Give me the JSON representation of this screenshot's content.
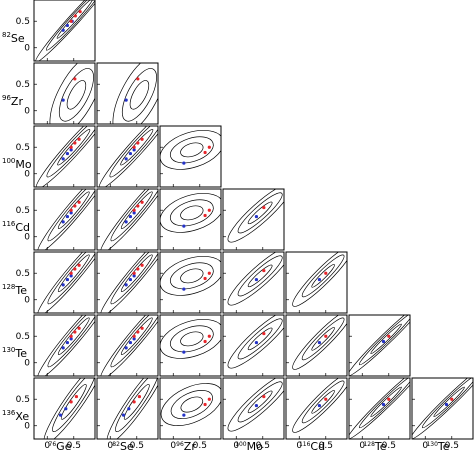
{
  "chart_data": {
    "type": "scatter",
    "layout": "triangular-matrix",
    "row_nuclei": [
      {
        "mass": "82",
        "symbol": "Se"
      },
      {
        "mass": "96",
        "symbol": "Zr"
      },
      {
        "mass": "100",
        "symbol": "Mo"
      },
      {
        "mass": "116",
        "symbol": "Cd"
      },
      {
        "mass": "128",
        "symbol": "Te"
      },
      {
        "mass": "130",
        "symbol": "Te"
      },
      {
        "mass": "136",
        "symbol": "Xe"
      }
    ],
    "col_nuclei": [
      {
        "mass": "76",
        "symbol": "Ge"
      },
      {
        "mass": "82",
        "symbol": "Se"
      },
      {
        "mass": "96",
        "symbol": "Zr"
      },
      {
        "mass": "100",
        "symbol": "Mo"
      },
      {
        "mass": "116",
        "symbol": "Cd"
      },
      {
        "mass": "128",
        "symbol": "Te"
      },
      {
        "mass": "130",
        "symbol": "Te"
      }
    ],
    "x_ticks": [
      "0",
      "0.5"
    ],
    "y_ticks": [
      "0",
      "0.5"
    ],
    "xlim": [
      -0.25,
      0.9
    ],
    "ylim": [
      -0.25,
      0.9
    ],
    "colors": {
      "red": "#e8262b",
      "blue": "#2432c8",
      "contour": "#000000"
    },
    "panels": [
      {
        "row": 0,
        "col": 0,
        "ellipse": {
          "cx": 0.52,
          "cy": 0.55,
          "rx": [
            0.5,
            0.8,
            1.1
          ],
          "ry": [
            0.045,
            0.075,
            0.1
          ],
          "angle": 48
        },
        "red": [
          [
            0.45,
            0.5
          ],
          [
            0.53,
            0.6
          ],
          [
            0.62,
            0.68
          ]
        ],
        "blue": [
          [
            0.3,
            0.33
          ],
          [
            0.38,
            0.42
          ],
          [
            0.47,
            0.5
          ]
        ]
      },
      {
        "row": 1,
        "col": 0,
        "ellipse": {
          "cx": 0.55,
          "cy": 0.3,
          "rx": [
            0.3,
            0.55,
            0.85
          ],
          "ry": [
            0.12,
            0.22,
            0.34
          ],
          "angle": 62
        },
        "red": [
          [
            0.52,
            0.6
          ]
        ],
        "blue": [
          [
            0.3,
            0.2
          ]
        ]
      },
      {
        "row": 1,
        "col": 1,
        "ellipse": {
          "cx": 0.55,
          "cy": 0.3,
          "rx": [
            0.3,
            0.55,
            0.85
          ],
          "ry": [
            0.12,
            0.22,
            0.34
          ],
          "angle": 62
        },
        "red": [
          [
            0.52,
            0.6
          ]
        ],
        "blue": [
          [
            0.3,
            0.2
          ]
        ]
      },
      {
        "row": 2,
        "col": 0,
        "ellipse": {
          "cx": 0.5,
          "cy": 0.5,
          "rx": [
            0.45,
            0.75,
            1.05
          ],
          "ry": [
            0.06,
            0.1,
            0.14
          ],
          "angle": 48
        },
        "red": [
          [
            0.45,
            0.5
          ],
          [
            0.52,
            0.58
          ],
          [
            0.6,
            0.65
          ]
        ],
        "blue": [
          [
            0.3,
            0.28
          ],
          [
            0.38,
            0.38
          ],
          [
            0.45,
            0.45
          ]
        ]
      },
      {
        "row": 2,
        "col": 1,
        "ellipse": {
          "cx": 0.5,
          "cy": 0.5,
          "rx": [
            0.45,
            0.75,
            1.05
          ],
          "ry": [
            0.06,
            0.1,
            0.14
          ],
          "angle": 48
        },
        "red": [
          [
            0.45,
            0.5
          ],
          [
            0.52,
            0.58
          ],
          [
            0.6,
            0.65
          ]
        ],
        "blue": [
          [
            0.3,
            0.28
          ],
          [
            0.38,
            0.38
          ],
          [
            0.45,
            0.45
          ]
        ]
      },
      {
        "row": 2,
        "col": 2,
        "ellipse": {
          "cx": 0.35,
          "cy": 0.45,
          "rx": [
            0.22,
            0.42,
            0.62
          ],
          "ry": [
            0.12,
            0.22,
            0.33
          ],
          "angle": 18
        },
        "red": [
          [
            0.6,
            0.4
          ],
          [
            0.68,
            0.5
          ]
        ],
        "blue": [
          [
            0.2,
            0.2
          ]
        ]
      },
      {
        "row": 3,
        "col": 0,
        "ellipse": {
          "cx": 0.5,
          "cy": 0.5,
          "rx": [
            0.45,
            0.75,
            1.05
          ],
          "ry": [
            0.06,
            0.1,
            0.14
          ],
          "angle": 50
        },
        "red": [
          [
            0.45,
            0.5
          ],
          [
            0.52,
            0.58
          ],
          [
            0.6,
            0.65
          ]
        ],
        "blue": [
          [
            0.3,
            0.28
          ],
          [
            0.38,
            0.38
          ],
          [
            0.45,
            0.45
          ]
        ]
      },
      {
        "row": 3,
        "col": 1,
        "ellipse": {
          "cx": 0.5,
          "cy": 0.5,
          "rx": [
            0.45,
            0.75,
            1.05
          ],
          "ry": [
            0.06,
            0.1,
            0.14
          ],
          "angle": 50
        },
        "red": [
          [
            0.45,
            0.5
          ],
          [
            0.52,
            0.58
          ],
          [
            0.6,
            0.65
          ]
        ],
        "blue": [
          [
            0.3,
            0.28
          ],
          [
            0.38,
            0.38
          ],
          [
            0.45,
            0.45
          ]
        ]
      },
      {
        "row": 3,
        "col": 2,
        "ellipse": {
          "cx": 0.35,
          "cy": 0.45,
          "rx": [
            0.22,
            0.42,
            0.62
          ],
          "ry": [
            0.12,
            0.22,
            0.33
          ],
          "angle": 18
        },
        "red": [
          [
            0.6,
            0.4
          ],
          [
            0.68,
            0.5
          ]
        ],
        "blue": [
          [
            0.2,
            0.2
          ]
        ]
      },
      {
        "row": 3,
        "col": 3,
        "ellipse": {
          "cx": 0.45,
          "cy": 0.45,
          "rx": [
            0.3,
            0.55,
            0.8
          ],
          "ry": [
            0.06,
            0.12,
            0.18
          ],
          "angle": 42
        },
        "red": [
          [
            0.52,
            0.55
          ]
        ],
        "blue": [
          [
            0.38,
            0.38
          ]
        ]
      },
      {
        "row": 4,
        "col": 0,
        "ellipse": {
          "cx": 0.5,
          "cy": 0.5,
          "rx": [
            0.45,
            0.75,
            1.05
          ],
          "ry": [
            0.06,
            0.1,
            0.14
          ],
          "angle": 50
        },
        "red": [
          [
            0.45,
            0.5
          ],
          [
            0.52,
            0.58
          ],
          [
            0.6,
            0.65
          ]
        ],
        "blue": [
          [
            0.3,
            0.28
          ],
          [
            0.38,
            0.38
          ],
          [
            0.45,
            0.45
          ]
        ]
      },
      {
        "row": 4,
        "col": 1,
        "ellipse": {
          "cx": 0.5,
          "cy": 0.5,
          "rx": [
            0.45,
            0.75,
            1.05
          ],
          "ry": [
            0.06,
            0.1,
            0.14
          ],
          "angle": 50
        },
        "red": [
          [
            0.45,
            0.5
          ],
          [
            0.52,
            0.58
          ],
          [
            0.6,
            0.65
          ]
        ],
        "blue": [
          [
            0.3,
            0.28
          ],
          [
            0.38,
            0.38
          ],
          [
            0.45,
            0.45
          ]
        ]
      },
      {
        "row": 4,
        "col": 2,
        "ellipse": {
          "cx": 0.35,
          "cy": 0.45,
          "rx": [
            0.22,
            0.42,
            0.62
          ],
          "ry": [
            0.12,
            0.22,
            0.33
          ],
          "angle": 18
        },
        "red": [
          [
            0.6,
            0.4
          ],
          [
            0.68,
            0.5
          ]
        ],
        "blue": [
          [
            0.2,
            0.2
          ]
        ]
      },
      {
        "row": 4,
        "col": 3,
        "ellipse": {
          "cx": 0.45,
          "cy": 0.45,
          "rx": [
            0.3,
            0.55,
            0.8
          ],
          "ry": [
            0.06,
            0.12,
            0.18
          ],
          "angle": 42
        },
        "red": [
          [
            0.52,
            0.55
          ]
        ],
        "blue": [
          [
            0.38,
            0.38
          ]
        ]
      },
      {
        "row": 4,
        "col": 4,
        "ellipse": {
          "cx": 0.45,
          "cy": 0.45,
          "rx": [
            0.3,
            0.55,
            0.8
          ],
          "ry": [
            0.05,
            0.1,
            0.15
          ],
          "angle": 45
        },
        "red": [
          [
            0.5,
            0.5
          ]
        ],
        "blue": [
          [
            0.38,
            0.38
          ]
        ]
      },
      {
        "row": 5,
        "col": 0,
        "ellipse": {
          "cx": 0.5,
          "cy": 0.5,
          "rx": [
            0.45,
            0.75,
            1.05
          ],
          "ry": [
            0.06,
            0.1,
            0.14
          ],
          "angle": 50
        },
        "red": [
          [
            0.45,
            0.5
          ],
          [
            0.52,
            0.58
          ],
          [
            0.6,
            0.65
          ]
        ],
        "blue": [
          [
            0.3,
            0.28
          ],
          [
            0.38,
            0.38
          ],
          [
            0.45,
            0.45
          ]
        ]
      },
      {
        "row": 5,
        "col": 1,
        "ellipse": {
          "cx": 0.5,
          "cy": 0.5,
          "rx": [
            0.45,
            0.75,
            1.05
          ],
          "ry": [
            0.06,
            0.1,
            0.14
          ],
          "angle": 50
        },
        "red": [
          [
            0.45,
            0.5
          ],
          [
            0.52,
            0.58
          ],
          [
            0.6,
            0.65
          ]
        ],
        "blue": [
          [
            0.3,
            0.28
          ],
          [
            0.38,
            0.38
          ],
          [
            0.45,
            0.45
          ]
        ]
      },
      {
        "row": 5,
        "col": 2,
        "ellipse": {
          "cx": 0.35,
          "cy": 0.45,
          "rx": [
            0.22,
            0.42,
            0.62
          ],
          "ry": [
            0.12,
            0.22,
            0.33
          ],
          "angle": 18
        },
        "red": [
          [
            0.6,
            0.4
          ],
          [
            0.68,
            0.5
          ]
        ],
        "blue": [
          [
            0.2,
            0.2
          ]
        ]
      },
      {
        "row": 5,
        "col": 3,
        "ellipse": {
          "cx": 0.45,
          "cy": 0.45,
          "rx": [
            0.3,
            0.55,
            0.8
          ],
          "ry": [
            0.06,
            0.12,
            0.18
          ],
          "angle": 42
        },
        "red": [
          [
            0.52,
            0.55
          ]
        ],
        "blue": [
          [
            0.38,
            0.38
          ]
        ]
      },
      {
        "row": 5,
        "col": 4,
        "ellipse": {
          "cx": 0.45,
          "cy": 0.45,
          "rx": [
            0.3,
            0.55,
            0.8
          ],
          "ry": [
            0.05,
            0.1,
            0.15
          ],
          "angle": 45
        },
        "red": [
          [
            0.5,
            0.5
          ]
        ],
        "blue": [
          [
            0.38,
            0.38
          ]
        ]
      },
      {
        "row": 5,
        "col": 5,
        "ellipse": {
          "cx": 0.45,
          "cy": 0.45,
          "rx": [
            0.4,
            0.7,
            1.0
          ],
          "ry": [
            0.04,
            0.07,
            0.1
          ],
          "angle": 44
        },
        "red": [
          [
            0.5,
            0.5
          ]
        ],
        "blue": [
          [
            0.4,
            0.4
          ]
        ]
      },
      {
        "row": 6,
        "col": 0,
        "ellipse": {
          "cx": 0.5,
          "cy": 0.45,
          "rx": [
            0.4,
            0.68,
            0.95
          ],
          "ry": [
            0.07,
            0.12,
            0.17
          ],
          "angle": 55
        },
        "red": [
          [
            0.45,
            0.45
          ],
          [
            0.55,
            0.55
          ]
        ],
        "blue": [
          [
            0.25,
            0.2
          ],
          [
            0.35,
            0.32
          ]
        ]
      },
      {
        "row": 6,
        "col": 1,
        "ellipse": {
          "cx": 0.5,
          "cy": 0.45,
          "rx": [
            0.4,
            0.68,
            0.95
          ],
          "ry": [
            0.07,
            0.12,
            0.17
          ],
          "angle": 55
        },
        "red": [
          [
            0.45,
            0.45
          ],
          [
            0.55,
            0.55
          ]
        ],
        "blue": [
          [
            0.25,
            0.2
          ],
          [
            0.35,
            0.32
          ]
        ]
      },
      {
        "row": 6,
        "col": 2,
        "ellipse": {
          "cx": 0.35,
          "cy": 0.4,
          "rx": [
            0.22,
            0.42,
            0.62
          ],
          "ry": [
            0.12,
            0.22,
            0.33
          ],
          "angle": 25
        },
        "red": [
          [
            0.6,
            0.4
          ],
          [
            0.68,
            0.5
          ]
        ],
        "blue": [
          [
            0.2,
            0.2
          ]
        ]
      },
      {
        "row": 6,
        "col": 3,
        "ellipse": {
          "cx": 0.45,
          "cy": 0.45,
          "rx": [
            0.3,
            0.55,
            0.8
          ],
          "ry": [
            0.06,
            0.12,
            0.18
          ],
          "angle": 42
        },
        "red": [
          [
            0.52,
            0.55
          ]
        ],
        "blue": [
          [
            0.38,
            0.38
          ]
        ]
      },
      {
        "row": 6,
        "col": 4,
        "ellipse": {
          "cx": 0.45,
          "cy": 0.45,
          "rx": [
            0.3,
            0.55,
            0.8
          ],
          "ry": [
            0.05,
            0.1,
            0.15
          ],
          "angle": 45
        },
        "red": [
          [
            0.5,
            0.5
          ]
        ],
        "blue": [
          [
            0.38,
            0.38
          ]
        ]
      },
      {
        "row": 6,
        "col": 5,
        "ellipse": {
          "cx": 0.45,
          "cy": 0.45,
          "rx": [
            0.4,
            0.7,
            1.0
          ],
          "ry": [
            0.04,
            0.07,
            0.1
          ],
          "angle": 44
        },
        "red": [
          [
            0.5,
            0.5
          ]
        ],
        "blue": [
          [
            0.4,
            0.4
          ]
        ]
      },
      {
        "row": 6,
        "col": 6,
        "ellipse": {
          "cx": 0.45,
          "cy": 0.45,
          "rx": [
            0.4,
            0.7,
            1.0
          ],
          "ry": [
            0.04,
            0.07,
            0.1
          ],
          "angle": 44
        },
        "red": [
          [
            0.5,
            0.5
          ]
        ],
        "blue": [
          [
            0.4,
            0.4
          ]
        ]
      }
    ]
  }
}
